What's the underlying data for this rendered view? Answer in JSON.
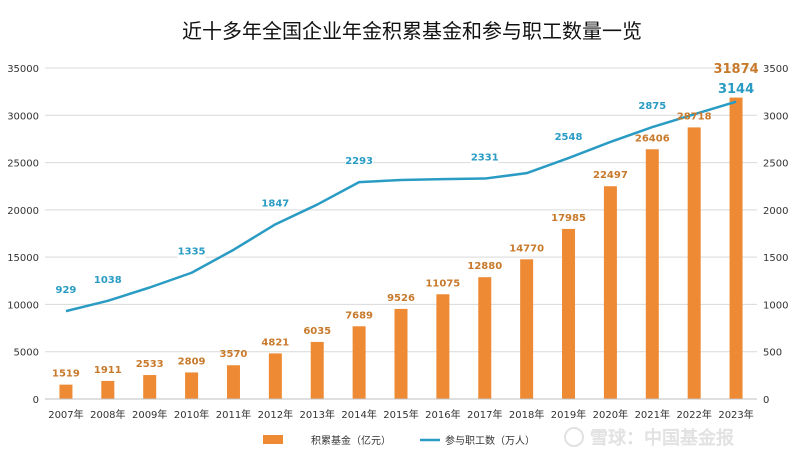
{
  "chart_data": {
    "type": "bar",
    "title": "近十多年全国企业年金积累基金和参与职工数量一览",
    "categories": [
      "2007年",
      "2008年",
      "2009年",
      "2010年",
      "2011年",
      "2012年",
      "2013年",
      "2014年",
      "2015年",
      "2016年",
      "2017年",
      "2018年",
      "2019年",
      "2020年",
      "2021年",
      "2022年",
      "2023年"
    ],
    "series": [
      {
        "name": "积累基金（亿元）",
        "type": "bar",
        "axis": "left",
        "values": [
          1519,
          1911,
          2533,
          2809,
          3570,
          4821,
          6035,
          7689,
          9526,
          11075,
          12880,
          14770,
          17985,
          22497,
          26406,
          28718,
          31874
        ]
      },
      {
        "name": "参与职工数（万人）",
        "type": "line",
        "axis": "right",
        "values": [
          929,
          1038,
          1179,
          1335,
          1577,
          1847,
          2056,
          2293,
          2316,
          2325,
          2331,
          2388,
          2548,
          2718,
          2875,
          3010,
          3144
        ],
        "labeled": [
          true,
          true,
          false,
          true,
          false,
          true,
          false,
          true,
          false,
          false,
          true,
          false,
          true,
          false,
          true,
          false,
          true
        ]
      }
    ],
    "ylim_left": [
      0,
      35000
    ],
    "yticks_left": [
      "0",
      "5000",
      "10000",
      "15000",
      "20000",
      "25000",
      "30000",
      "35000"
    ],
    "ylim_right": [
      0,
      3500
    ],
    "yticks_right": [
      "0",
      "500",
      "1000",
      "1500",
      "2000",
      "2500",
      "3000",
      "3500"
    ],
    "grid": true,
    "legend_position": "bottom-center",
    "colors": {
      "bar": "#ed8a33",
      "line": "#2a9cc4",
      "bar_label": "#c87a2c",
      "line_label": "#2a9cc4"
    }
  },
  "watermark": "雪球：中国基金报"
}
